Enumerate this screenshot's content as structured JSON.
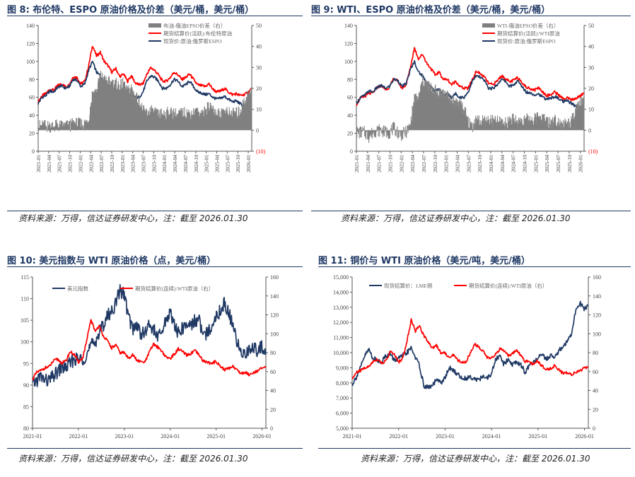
{
  "titles": {
    "fig8": "图 8:  布伦特、ESPO 原油价格及价差（美元/桶，美元/桶）",
    "fig9": "图 9:  WTI、ESPO 原油价格及价差（美元/桶，美元/桶）",
    "fig10": "图 10:  美元指数与 WTI 原油价格（点，美元/桶）",
    "fig11": "图 11:  铜价与 WTI 原油价格（美元/吨，美元/桶）"
  },
  "source_text": "资料来源：万得，信达证券研发中心，注：截至 2026.01.30",
  "colors": {
    "red": "#ff0000",
    "navy": "#1f3864",
    "gray": "#808080",
    "axis": "#555555"
  },
  "chart_data": [
    {
      "id": "fig8",
      "type": "line",
      "x_start": "2021-01",
      "x_ticks": [
        "2021-01",
        "2021-04",
        "2021-07",
        "2021-10",
        "2022-01",
        "2022-04",
        "2022-07",
        "2022-10",
        "2023-01",
        "2023-04",
        "2023-07",
        "2023-10",
        "2024-01",
        "2024-04",
        "2024-07",
        "2024-10",
        "2025-01",
        "2025-04",
        "2025-07",
        "2025-10",
        "2026-01"
      ],
      "ylim": [
        0,
        140
      ],
      "yticks": [
        0,
        20,
        40,
        60,
        80,
        100,
        120,
        140
      ],
      "y2lim": [
        -10,
        50
      ],
      "y2ticks": [
        "(10)",
        "0",
        "10",
        "20",
        "30",
        "40",
        "50"
      ],
      "y2_neg_label_color": "#ff0000",
      "legend": [
        {
          "label": "布油-俄油EPSO价差（右）",
          "color": "#808080",
          "kind": "area"
        },
        {
          "label": "期货结算价(活跃):布伦特原油",
          "color": "#ff0000",
          "kind": "line"
        },
        {
          "label": "现货价:原油:俄罗斯ESPO",
          "color": "#1f3864",
          "kind": "line"
        }
      ],
      "series": [
        {
          "name": "期货结算价(活跃):布伦特原油",
          "axis": "left",
          "color": "#ff0000",
          "values": [
            55,
            62,
            64,
            69,
            68,
            73,
            75,
            72,
            74,
            83,
            82,
            75,
            78,
            95,
            118,
            106,
            110,
            100,
            95,
            88,
            92,
            83,
            86,
            78,
            84,
            76,
            74,
            75,
            86,
            93,
            90,
            85,
            78,
            78,
            82,
            88,
            85,
            80,
            82,
            86,
            80,
            74,
            73,
            72,
            75,
            69,
            66,
            67,
            70,
            66,
            63,
            64,
            62,
            63,
            65,
            70
          ]
        },
        {
          "name": "现货价:原油:俄罗斯ESPO",
          "axis": "left",
          "color": "#1f3864",
          "values": [
            53,
            60,
            62,
            67,
            66,
            71,
            73,
            70,
            72,
            80,
            79,
            72,
            75,
            90,
            100,
            88,
            84,
            76,
            72,
            66,
            70,
            62,
            64,
            60,
            64,
            60,
            60,
            66,
            78,
            84,
            82,
            78,
            70,
            70,
            74,
            80,
            78,
            72,
            74,
            78,
            72,
            66,
            65,
            63,
            64,
            60,
            58,
            59,
            61,
            58,
            55,
            56,
            53,
            50,
            48,
            52
          ]
        },
        {
          "name": "布油-俄油EPSO价差（右）",
          "axis": "right",
          "color": "#808080",
          "values": [
            2,
            2,
            2,
            2,
            2,
            2,
            2,
            2,
            2,
            3,
            3,
            3,
            3,
            5,
            18,
            18,
            26,
            24,
            23,
            22,
            22,
            21,
            22,
            18,
            20,
            16,
            14,
            9,
            8,
            9,
            8,
            7,
            8,
            8,
            8,
            8,
            7,
            8,
            8,
            8,
            8,
            8,
            8,
            9,
            11,
            9,
            8,
            8,
            9,
            8,
            8,
            8,
            9,
            13,
            17,
            18
          ]
        }
      ]
    },
    {
      "id": "fig9",
      "type": "line",
      "x_start": "2021-01",
      "x_ticks": [
        "2021-01",
        "2021-04",
        "2021-07",
        "2021-10",
        "2022-01",
        "2022-04",
        "2022-07",
        "2022-10",
        "2023-01",
        "2023-04",
        "2023-07",
        "2023-10",
        "2024-01",
        "2024-04",
        "2024-07",
        "2024-10",
        "2025-01",
        "2025-04",
        "2025-07",
        "2025-10",
        "2026-01"
      ],
      "ylim": [
        0,
        140
      ],
      "yticks": [
        0,
        20,
        40,
        60,
        80,
        100,
        120,
        140
      ],
      "y2lim": [
        -10,
        50
      ],
      "y2ticks": [
        "(10)",
        "0",
        "10",
        "20",
        "30",
        "40",
        "50"
      ],
      "y2_neg_label_color": "#ff0000",
      "legend": [
        {
          "label": "WTI-俄油EPSO价差（右）",
          "color": "#808080",
          "kind": "area"
        },
        {
          "label": "期货结算价(活跃):WTI原油",
          "color": "#ff0000",
          "kind": "line"
        },
        {
          "label": "现货价:原油:俄罗斯ESPO",
          "color": "#1f3864",
          "kind": "line"
        }
      ],
      "series": [
        {
          "name": "期货结算价(活跃):WTI原油",
          "axis": "left",
          "color": "#ff0000",
          "values": [
            52,
            59,
            61,
            64,
            65,
            71,
            73,
            69,
            71,
            81,
            78,
            70,
            74,
            92,
            115,
            103,
            108,
            98,
            92,
            85,
            88,
            80,
            80,
            74,
            78,
            72,
            70,
            70,
            80,
            89,
            86,
            82,
            75,
            74,
            78,
            84,
            81,
            77,
            79,
            82,
            77,
            71,
            70,
            68,
            71,
            66,
            62,
            63,
            66,
            62,
            58,
            59,
            57,
            59,
            61,
            65
          ]
        },
        {
          "name": "现货价:原油:俄罗斯ESPO",
          "axis": "left",
          "color": "#1f3864",
          "values": [
            53,
            60,
            62,
            67,
            66,
            71,
            73,
            70,
            72,
            80,
            79,
            72,
            75,
            90,
            100,
            88,
            84,
            76,
            72,
            66,
            70,
            62,
            64,
            60,
            64,
            60,
            60,
            66,
            78,
            84,
            82,
            78,
            70,
            70,
            74,
            80,
            78,
            72,
            74,
            78,
            72,
            66,
            65,
            63,
            64,
            60,
            58,
            59,
            61,
            58,
            55,
            56,
            53,
            50,
            48,
            52
          ]
        },
        {
          "name": "WTI-俄油EPSO价差（右）",
          "axis": "right",
          "color": "#808080",
          "values": [
            -1,
            -1,
            -1,
            -3,
            -1,
            0,
            0,
            -1,
            -1,
            1,
            -1,
            -2,
            -1,
            2,
            15,
            15,
            24,
            22,
            20,
            19,
            18,
            18,
            16,
            14,
            14,
            12,
            10,
            4,
            2,
            5,
            4,
            4,
            5,
            4,
            4,
            4,
            3,
            5,
            5,
            4,
            5,
            5,
            5,
            5,
            7,
            6,
            4,
            4,
            5,
            4,
            3,
            3,
            4,
            9,
            13,
            13
          ]
        }
      ]
    },
    {
      "id": "fig10",
      "type": "line",
      "x_start": "2021-01",
      "x_ticks": [
        "2021-01",
        "2022-01",
        "2023-01",
        "2024-01",
        "2025-01",
        "2026-01"
      ],
      "ylim": [
        80,
        115
      ],
      "yticks": [
        80,
        85,
        90,
        95,
        100,
        105,
        110,
        115
      ],
      "y2lim": [
        0,
        160
      ],
      "y2ticks": [
        "0",
        "20",
        "40",
        "60",
        "80",
        "100",
        "120",
        "140",
        "160"
      ],
      "legend": [
        {
          "label": "美元指数",
          "color": "#1f3864",
          "kind": "line"
        },
        {
          "label": "期货结算价(连续):WTI原油（右）",
          "color": "#ff0000",
          "kind": "line"
        }
      ],
      "series": [
        {
          "name": "美元指数",
          "axis": "left",
          "color": "#1f3864",
          "values": [
            90,
            91,
            92,
            91,
            91,
            92,
            93,
            94,
            94,
            95,
            96,
            96,
            96,
            97,
            99,
            100,
            102,
            104,
            106,
            107,
            109,
            112,
            111,
            106,
            103,
            104,
            102,
            102,
            104,
            103,
            101,
            102,
            105,
            107,
            104,
            102,
            103,
            104,
            104,
            105,
            105,
            101,
            102,
            104,
            106,
            107,
            109,
            107,
            104,
            100,
            98,
            97,
            98,
            99,
            98,
            99,
            97
          ]
        },
        {
          "name": "期货结算价(连续):WTI原油（右）",
          "axis": "right",
          "color": "#ff0000",
          "values": [
            52,
            59,
            61,
            64,
            65,
            71,
            73,
            69,
            71,
            81,
            78,
            70,
            74,
            92,
            115,
            103,
            108,
            98,
            92,
            85,
            88,
            80,
            80,
            74,
            78,
            72,
            70,
            70,
            80,
            89,
            86,
            82,
            75,
            74,
            78,
            84,
            81,
            77,
            79,
            82,
            77,
            71,
            70,
            68,
            71,
            66,
            62,
            63,
            66,
            62,
            58,
            59,
            57,
            59,
            61,
            63,
            65
          ]
        }
      ]
    },
    {
      "id": "fig11",
      "type": "line",
      "x_start": "2021-01",
      "x_ticks": [
        "2021-01",
        "2022-01",
        "2023-01",
        "2024-01",
        "2025-01",
        "2026-01"
      ],
      "ylim": [
        5000,
        15000
      ],
      "yticks": [
        "5,000",
        "6,000",
        "7,000",
        "8,000",
        "9,000",
        "10,000",
        "11,000",
        "12,000",
        "13,000",
        "14,000",
        "15,000"
      ],
      "y2lim": [
        0,
        160
      ],
      "y2ticks": [
        "0",
        "20",
        "40",
        "60",
        "80",
        "100",
        "120",
        "140",
        "160"
      ],
      "legend": [
        {
          "label": "现货结算价：LME铜",
          "color": "#1f3864",
          "kind": "line"
        },
        {
          "label": "期货结算价(连续):WTI原油（右）",
          "color": "#ff0000",
          "kind": "line"
        }
      ],
      "series": [
        {
          "name": "现货结算价：LME铜",
          "axis": "left",
          "color": "#1f3864",
          "values": [
            7900,
            8400,
            9000,
            9800,
            10200,
            9600,
            9500,
            9400,
            9800,
            9900,
            9500,
            9600,
            9800,
            10000,
            10300,
            9700,
            9100,
            7800,
            7700,
            7800,
            8200,
            8000,
            8300,
            9000,
            8800,
            8600,
            8300,
            8300,
            8400,
            8300,
            8200,
            8400,
            8300,
            8600,
            9500,
            9800,
            9200,
            9600,
            9200,
            9400,
            9200,
            8700,
            9100,
            9300,
            9700,
            9800,
            9600,
            9800,
            9700,
            10100,
            10400,
            10700,
            11200,
            12800,
            13300,
            12900,
            13100
          ]
        },
        {
          "name": "期货结算价(连续):WTI原油（右）",
          "axis": "right",
          "color": "#ff0000",
          "values": [
            52,
            59,
            61,
            64,
            65,
            71,
            73,
            69,
            71,
            81,
            78,
            70,
            74,
            92,
            115,
            103,
            108,
            98,
            92,
            85,
            88,
            80,
            80,
            74,
            78,
            72,
            70,
            70,
            80,
            89,
            86,
            82,
            75,
            74,
            78,
            84,
            81,
            77,
            79,
            82,
            77,
            71,
            70,
            68,
            71,
            66,
            62,
            63,
            66,
            62,
            58,
            59,
            57,
            59,
            61,
            63,
            65
          ]
        }
      ]
    }
  ]
}
